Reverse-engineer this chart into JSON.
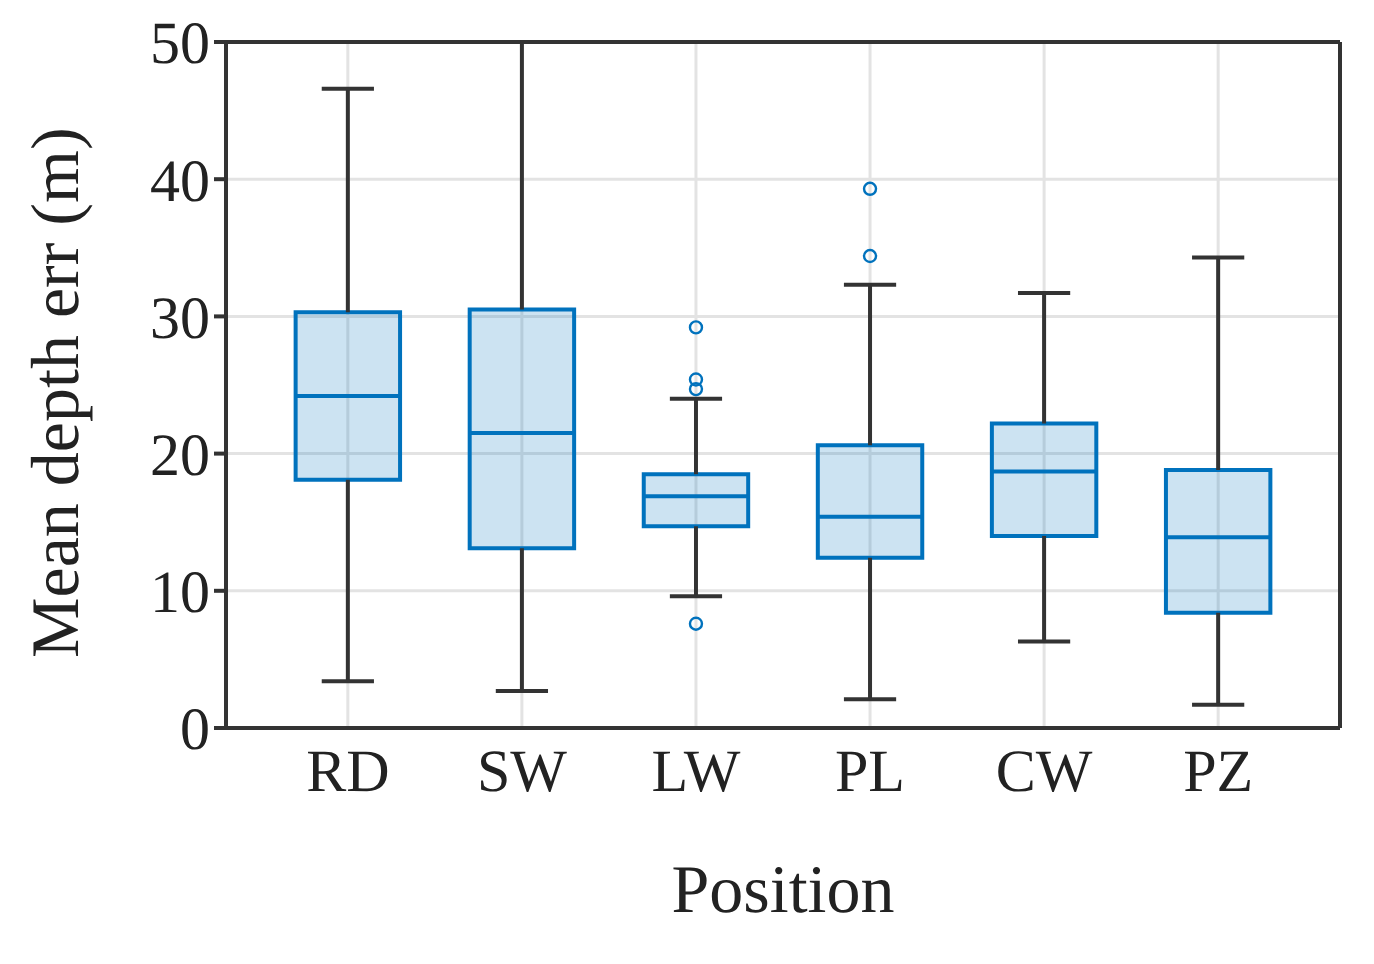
{
  "chart_data": {
    "type": "box",
    "xlabel": "Position",
    "ylabel": "Mean depth err (m)",
    "categories": [
      "RD",
      "SW",
      "LW",
      "PL",
      "CW",
      "PZ"
    ],
    "ylim": [
      0,
      50
    ],
    "yticks": [
      0,
      10,
      20,
      30,
      40,
      50
    ],
    "grid": true,
    "series": [
      {
        "color": "#0072bd",
        "boxes": [
          {
            "low": 3.4,
            "q1": 18.1,
            "median": 24.2,
            "q3": 30.3,
            "high": 46.6
          },
          {
            "low": 2.7,
            "q1": 13.1,
            "median": 21.5,
            "q3": 30.5,
            "high": 50
          },
          {
            "low": 9.6,
            "q1": 14.7,
            "median": 16.9,
            "q3": 18.5,
            "high": 24,
            "outliers": [
              29.2,
              25.4,
              24.7,
              7.6
            ]
          },
          {
            "low": 2.1,
            "q1": 12.4,
            "median": 15.4,
            "q3": 20.6,
            "high": 32.3,
            "outliers": [
              39.3,
              34.4
            ]
          },
          {
            "low": 6.3,
            "q1": 14,
            "median": 18.7,
            "q3": 22.2,
            "high": 31.7
          },
          {
            "low": 1.7,
            "q1": 8.4,
            "median": 13.9,
            "q3": 18.8,
            "high": 34.3
          }
        ]
      }
    ]
  }
}
